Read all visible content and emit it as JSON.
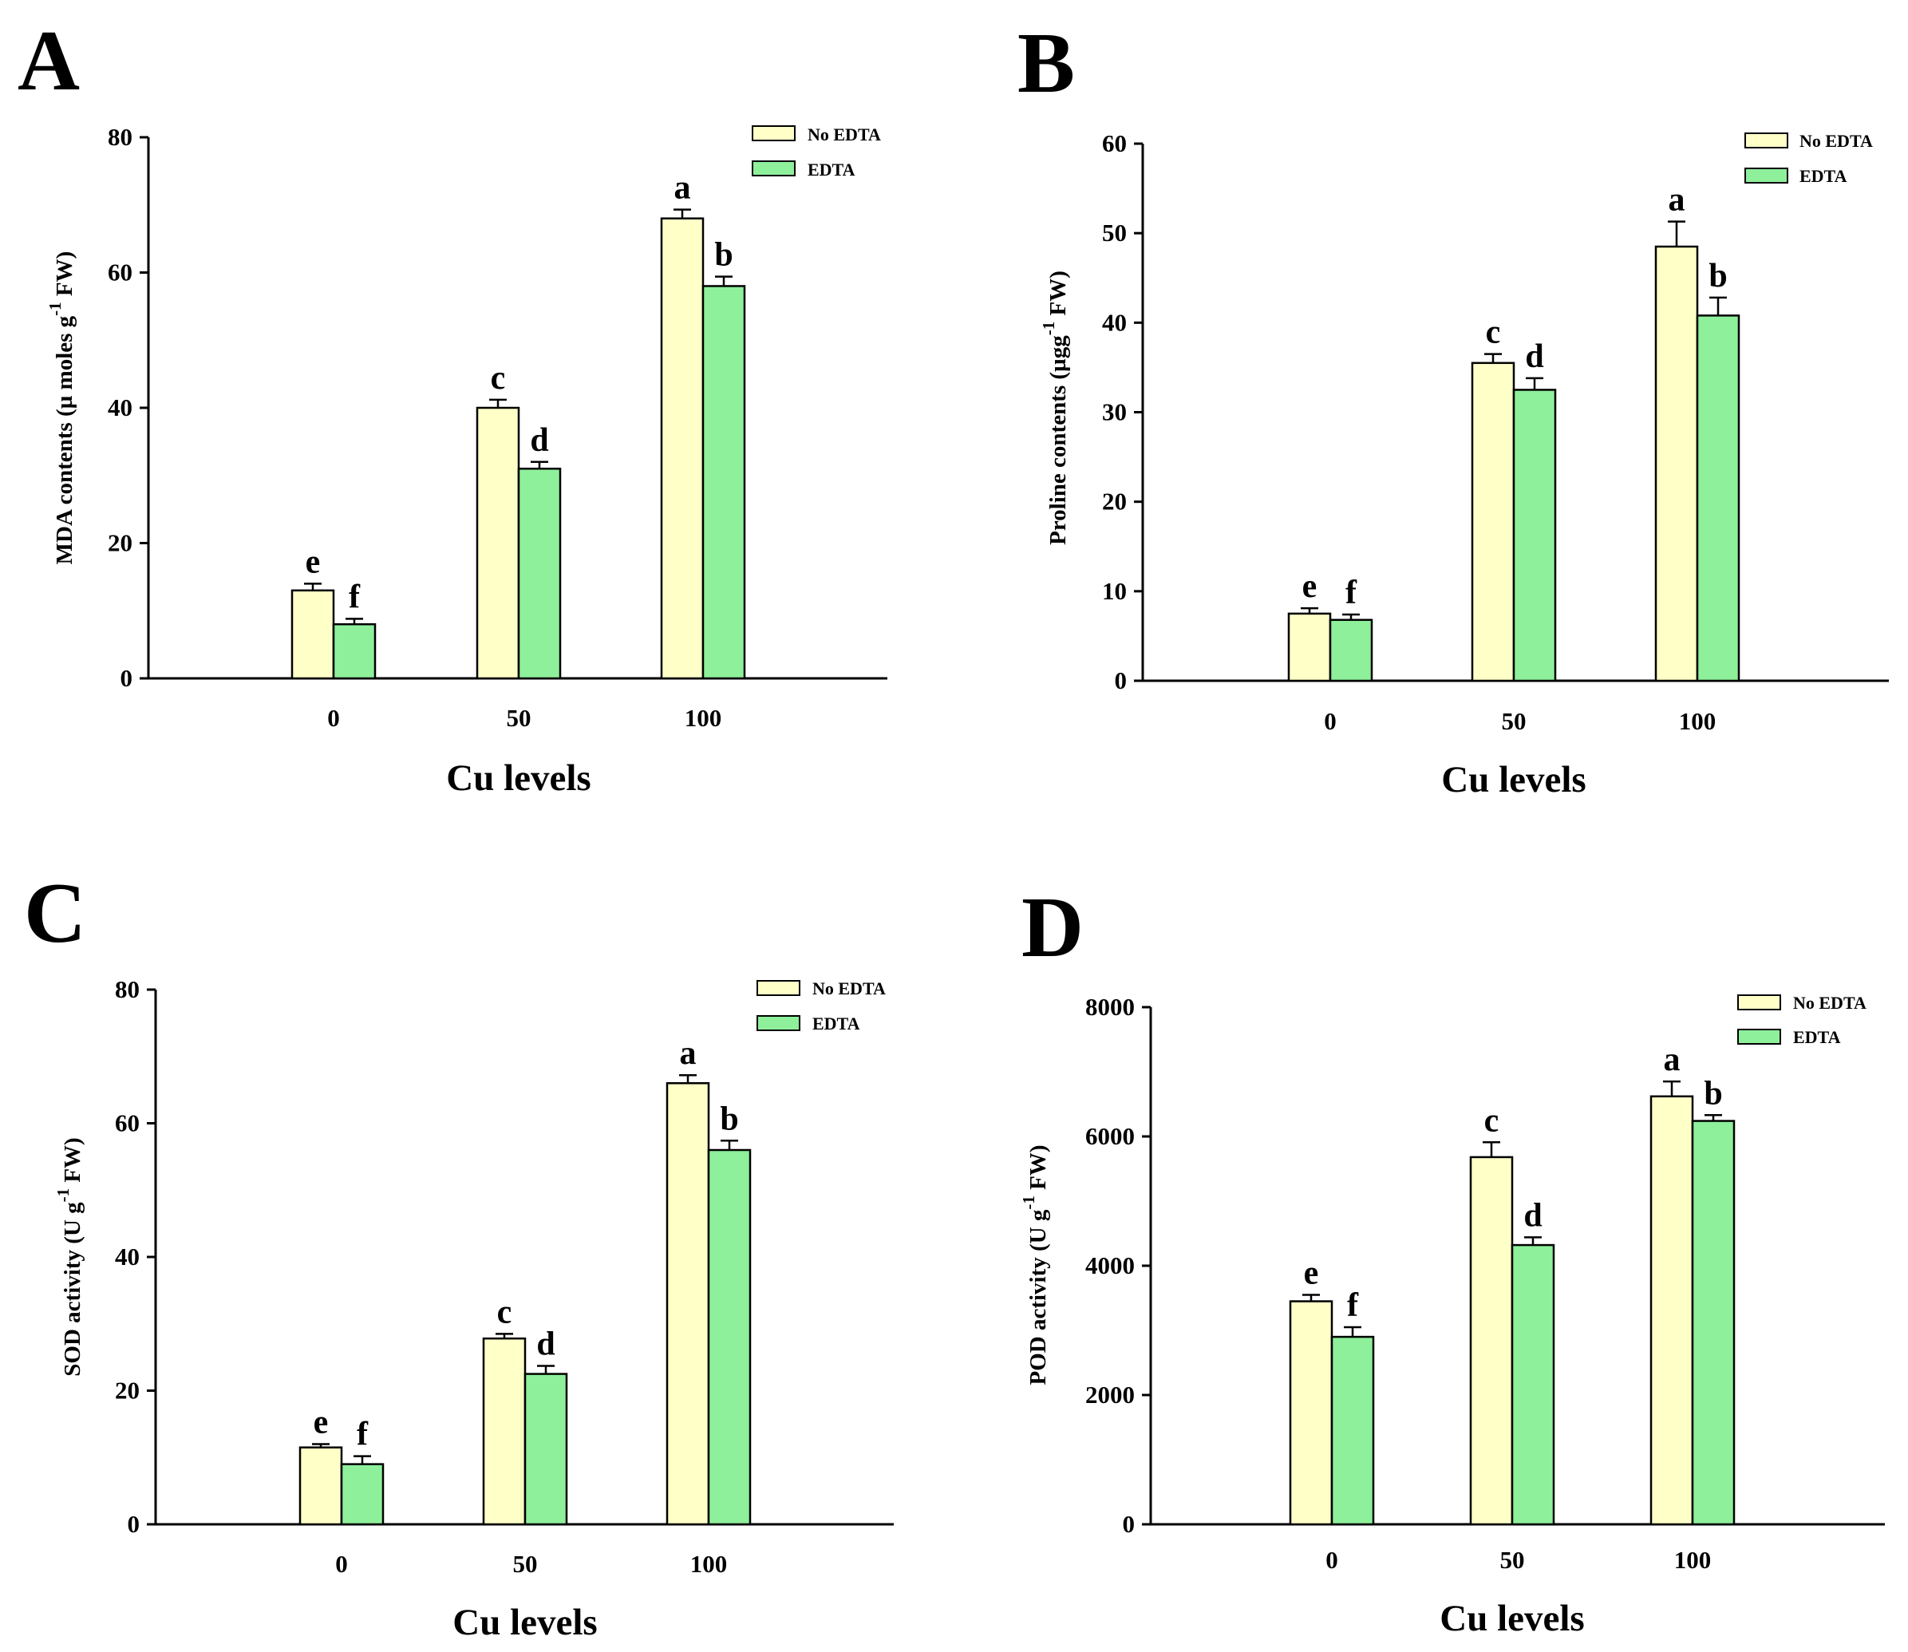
{
  "chart_data": [
    {
      "panel": "A",
      "type": "bar",
      "categories": [
        "0",
        "50",
        "100"
      ],
      "xlabel": "Cu levels",
      "ylabel": "MDA contents (µ moles g",
      "ylabel_sup": "-1",
      "ylabel_end": " FW)",
      "ylim": [
        0,
        80
      ],
      "yticks": [
        0,
        20,
        40,
        60,
        80
      ],
      "series": [
        {
          "name": "No EDTA",
          "color": "#ffffc8",
          "values": [
            13,
            40,
            68
          ],
          "errors": [
            1,
            1.2,
            1.3
          ],
          "labels": [
            "e",
            "c",
            "a"
          ]
        },
        {
          "name": "EDTA",
          "color": "#8ef09a",
          "values": [
            8,
            31,
            58
          ],
          "errors": [
            0.8,
            1,
            1.4
          ],
          "labels": [
            "f",
            "d",
            "b"
          ]
        }
      ]
    },
    {
      "panel": "B",
      "type": "bar",
      "categories": [
        "0",
        "50",
        "100"
      ],
      "xlabel": "Cu levels",
      "ylabel": "Proline contents (µgg",
      "ylabel_sup": "-1",
      "ylabel_end": " FW)",
      "ylim": [
        0,
        60
      ],
      "yticks": [
        0,
        10,
        20,
        30,
        40,
        50,
        60
      ],
      "series": [
        {
          "name": "No EDTA",
          "color": "#ffffc8",
          "values": [
            7.5,
            35.5,
            48.5
          ],
          "errors": [
            0.6,
            1,
            2.8
          ],
          "labels": [
            "e",
            "c",
            "a"
          ]
        },
        {
          "name": "EDTA",
          "color": "#8ef09a",
          "values": [
            6.8,
            32.5,
            40.8
          ],
          "errors": [
            0.6,
            1.3,
            2
          ],
          "labels": [
            "f",
            "d",
            "b"
          ]
        }
      ]
    },
    {
      "panel": "C",
      "type": "bar",
      "categories": [
        "0",
        "50",
        "100"
      ],
      "xlabel": "Cu levels",
      "ylabel": "SOD activity (U g",
      "ylabel_sup": "-1",
      "ylabel_end": " FW)",
      "ylim": [
        0,
        80
      ],
      "yticks": [
        0,
        20,
        40,
        60,
        80
      ],
      "series": [
        {
          "name": "No EDTA",
          "color": "#ffffc8",
          "values": [
            11.5,
            27.8,
            66
          ],
          "errors": [
            0.5,
            0.7,
            1.2
          ],
          "labels": [
            "e",
            "c",
            "a"
          ]
        },
        {
          "name": "EDTA",
          "color": "#8ef09a",
          "values": [
            9,
            22.5,
            56
          ],
          "errors": [
            1.2,
            1.2,
            1.4
          ],
          "labels": [
            "f",
            "d",
            "b"
          ]
        }
      ]
    },
    {
      "panel": "D",
      "type": "bar",
      "categories": [
        "0",
        "50",
        "100"
      ],
      "xlabel": "Cu levels",
      "ylabel": "POD activity (U g",
      "ylabel_sup": "-1",
      "ylabel_end": " FW)",
      "ylim": [
        0,
        8000
      ],
      "yticks": [
        0,
        2000,
        4000,
        6000,
        8000
      ],
      "series": [
        {
          "name": "No EDTA",
          "color": "#ffffc8",
          "values": [
            3450,
            5680,
            6620
          ],
          "errors": [
            100,
            230,
            230
          ],
          "labels": [
            "e",
            "c",
            "a"
          ]
        },
        {
          "name": "EDTA",
          "color": "#8ef09a",
          "values": [
            2900,
            4320,
            6240
          ],
          "errors": [
            150,
            120,
            90
          ],
          "labels": [
            "f",
            "d",
            "b"
          ]
        }
      ]
    }
  ]
}
